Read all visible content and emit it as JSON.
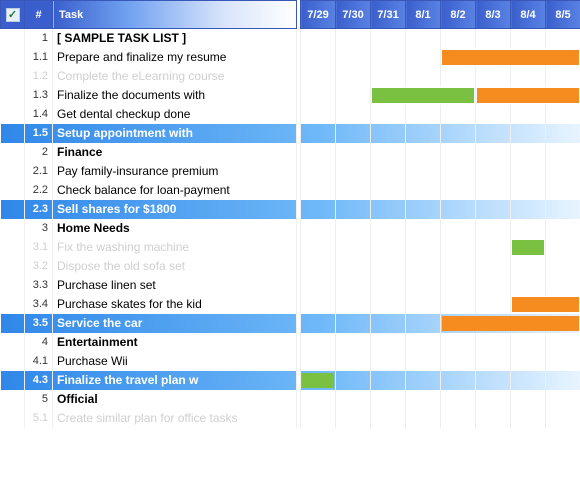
{
  "header": {
    "check": "✓",
    "num": "#",
    "task": "Task",
    "dates": [
      "7/29",
      "7/30",
      "7/31",
      "8/1",
      "8/2",
      "8/3",
      "8/4",
      "8/5"
    ]
  },
  "colors": {
    "orange": "#f68b1f",
    "green": "#7ac142"
  },
  "rows": [
    {
      "num": "1",
      "task": "[ SAMPLE TASK LIST ]",
      "style": "bold",
      "bars": []
    },
    {
      "num": "1.1",
      "task": "Prepare and finalize my resume",
      "style": "",
      "bars": [
        {
          "start": 4,
          "span": 4,
          "color": "orange"
        }
      ]
    },
    {
      "num": "1.2",
      "task": "Complete the eLearning course",
      "style": "dim",
      "bars": []
    },
    {
      "num": "1.3",
      "task": "Finalize the documents with",
      "style": "",
      "bars": [
        {
          "start": 2,
          "span": 3,
          "color": "green"
        },
        {
          "start": 5,
          "span": 3,
          "color": "orange"
        }
      ]
    },
    {
      "num": "1.4",
      "task": "Get dental checkup done",
      "style": "",
      "bars": []
    },
    {
      "num": "1.5",
      "task": "Setup appointment with",
      "style": "hl",
      "bars": []
    },
    {
      "num": "2",
      "task": "Finance",
      "style": "bold",
      "bars": []
    },
    {
      "num": "2.1",
      "task": "Pay family-insurance premium",
      "style": "",
      "bars": []
    },
    {
      "num": "2.2",
      "task": "Check balance for loan-payment",
      "style": "",
      "bars": []
    },
    {
      "num": "2.3",
      "task": "Sell shares for $1800",
      "style": "hl",
      "bars": []
    },
    {
      "num": "3",
      "task": "Home Needs",
      "style": "bold",
      "bars": []
    },
    {
      "num": "3.1",
      "task": "Fix the washing machine",
      "style": "dim",
      "bars": [
        {
          "start": 6,
          "span": 1,
          "color": "green"
        }
      ]
    },
    {
      "num": "3.2",
      "task": "Dispose the old sofa set",
      "style": "dim",
      "bars": []
    },
    {
      "num": "3.3",
      "task": "Purchase linen set",
      "style": "",
      "bars": []
    },
    {
      "num": "3.4",
      "task": "Purchase skates for the kid",
      "style": "",
      "bars": [
        {
          "start": 6,
          "span": 2,
          "color": "orange"
        }
      ]
    },
    {
      "num": "3.5",
      "task": "Service the car",
      "style": "hl",
      "bars": [
        {
          "start": 4,
          "span": 4,
          "color": "orange"
        }
      ]
    },
    {
      "num": "4",
      "task": "Entertainment",
      "style": "bold",
      "bars": []
    },
    {
      "num": "4.1",
      "task": "Purchase Wii",
      "style": "",
      "bars": []
    },
    {
      "num": "4.3",
      "task": "Finalize the travel plan w",
      "style": "hl",
      "bars": [
        {
          "start": 0,
          "span": 1,
          "color": "green"
        }
      ]
    },
    {
      "num": "5",
      "task": "Official",
      "style": "bold",
      "bars": []
    },
    {
      "num": "5.1",
      "task": "Create similar plan for office tasks",
      "style": "dim",
      "bars": []
    }
  ]
}
